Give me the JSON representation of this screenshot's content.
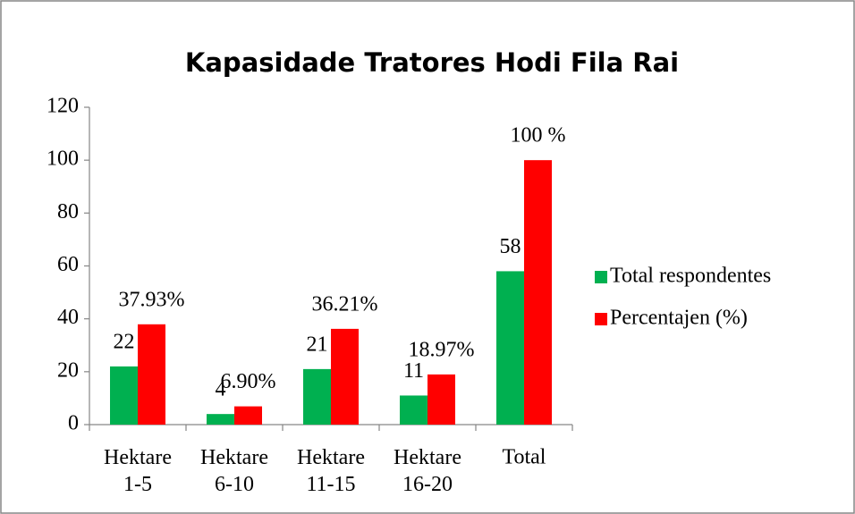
{
  "chart_data": {
    "type": "bar",
    "title": "Kapasidade Tratores Hodi Fila Rai",
    "categories": [
      "Hektare 1-5",
      "Hektare 6-10",
      "Hektare 11-15",
      "Hektare 16-20",
      "Total"
    ],
    "series": [
      {
        "name": "Total respondentes",
        "color": "#00b050",
        "values": [
          22,
          4,
          21,
          11,
          58
        ]
      },
      {
        "name": "Percentajen (%)",
        "color": "#ff0000",
        "values": [
          37.93,
          6.9,
          36.21,
          18.97,
          100
        ],
        "value_labels": [
          "37.93%",
          "6.90%",
          "36.21%",
          "18.97%",
          "100 %"
        ]
      }
    ],
    "ylim": [
      0,
      120
    ],
    "yticks": [
      0,
      20,
      40,
      60,
      80,
      100,
      120
    ],
    "grid": false,
    "legend": "right"
  }
}
